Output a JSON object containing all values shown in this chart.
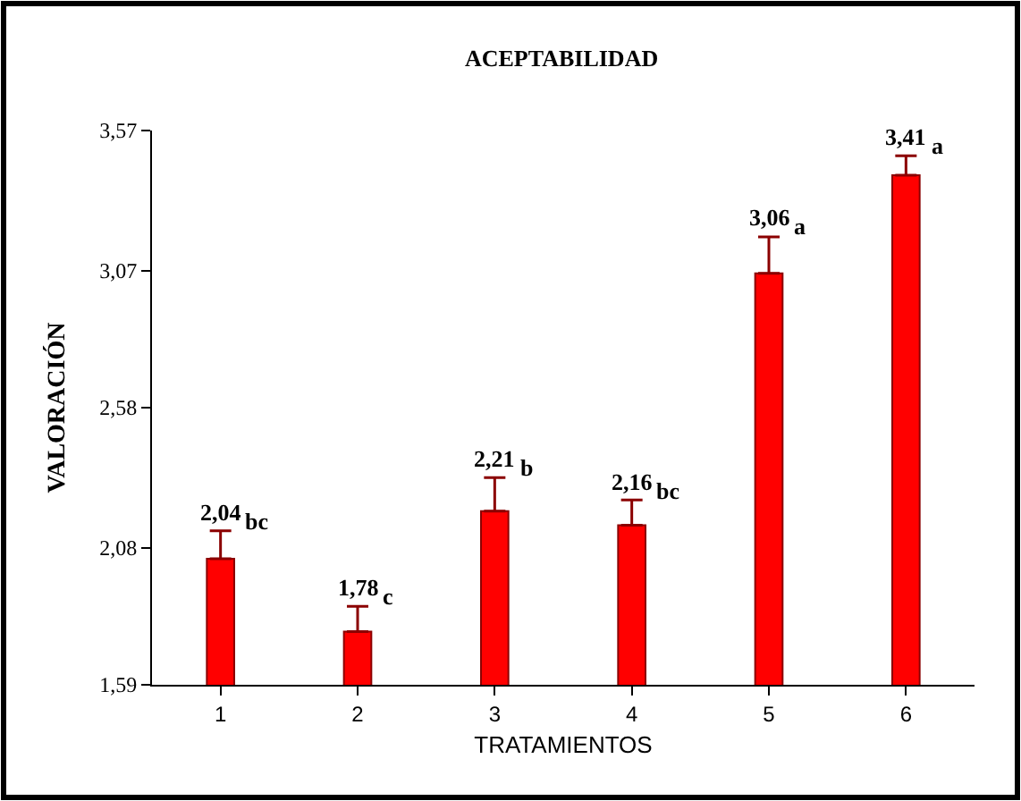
{
  "chart_data": {
    "type": "bar",
    "title": "ACEPTABILIDAD",
    "xlabel": "TRATAMIENTOS",
    "ylabel": "VALORACIÓN",
    "categories": [
      "1",
      "2",
      "3",
      "4",
      "5",
      "6"
    ],
    "values": [
      2.04,
      1.78,
      2.21,
      2.16,
      3.06,
      3.41
    ],
    "value_labels": [
      "2,04",
      "1,78",
      "2,21",
      "2,16",
      "3,06",
      "3,41"
    ],
    "errors": [
      [
        2.04,
        2.14
      ],
      [
        1.78,
        1.87
      ],
      [
        2.21,
        2.33
      ],
      [
        2.16,
        2.25
      ],
      [
        3.06,
        3.19
      ],
      [
        3.41,
        3.48
      ]
    ],
    "color": "#ff0000",
    "annotations": [
      {
        "text": "bc",
        "x": "1",
        "y": 2.14
      },
      {
        "text": "c",
        "x": "2",
        "y": 1.87
      },
      {
        "text": "b",
        "x": "3",
        "y": 2.33
      },
      {
        "text": "bc",
        "x": "4",
        "y": 2.25
      },
      {
        "text": "a",
        "x": "5",
        "y": 3.19
      },
      {
        "text": "a",
        "x": "6",
        "y": 3.48
      }
    ],
    "ylim": [
      1.59,
      3.57
    ],
    "yticks": [
      {
        "value": 1.59,
        "label": "1,59"
      },
      {
        "value": 2.08,
        "label": "2,08"
      },
      {
        "value": 2.58,
        "label": "2,58"
      },
      {
        "value": 3.07,
        "label": "3,07"
      },
      {
        "value": 3.57,
        "label": "3,57"
      }
    ]
  }
}
